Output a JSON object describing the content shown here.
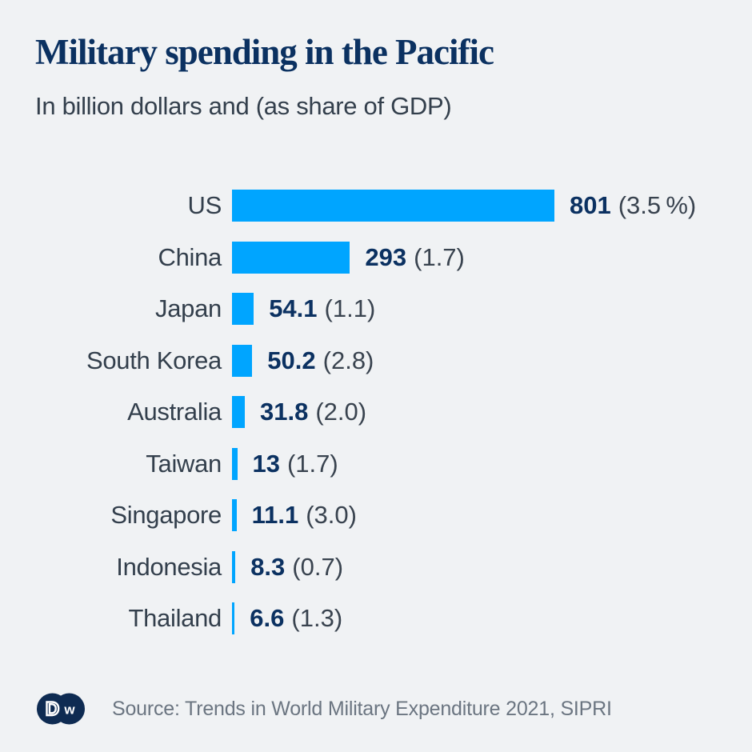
{
  "page": {
    "background": "#f0f2f4"
  },
  "header": {
    "title": "Military spending in the Pacific",
    "subtitle": "In billion dollars and (as share of GDP)"
  },
  "chart_data": {
    "type": "bar",
    "orientation": "horizontal",
    "title": "Military spending in the Pacific",
    "unit": "billion US dollars",
    "categories": [
      "US",
      "China",
      "Japan",
      "South Korea",
      "Australia",
      "Taiwan",
      "Singapore",
      "Indonesia",
      "Thailand"
    ],
    "values": [
      801,
      293,
      54.1,
      50.2,
      31.8,
      13,
      11.1,
      8.3,
      6.6
    ],
    "value_labels": [
      "801",
      "293",
      "54.1",
      "50.2",
      "31.8",
      "13",
      "11.1",
      "8.3",
      "6.6"
    ],
    "gdp_share_labels": [
      "(3.5 %)",
      "(1.7)",
      "(1.1)",
      "(2.8)",
      "(2.0)",
      "(1.7)",
      "(3.0)",
      "(0.7)",
      "(1.3)"
    ],
    "xlim": [
      0,
      801
    ],
    "bar_color": "#00a5ff",
    "grid": false,
    "legend": "none"
  },
  "footer": {
    "logo": "DW",
    "logo_d": "D",
    "logo_w": "w",
    "source": "Source: Trends in World Military Expenditure 2021, SIPRI"
  },
  "colors": {
    "background": "#f0f2f4",
    "title_navy": "#0b3161",
    "bar_blue": "#00a5ff",
    "label_gray": "#333f4c",
    "source_gray": "#6b7581",
    "logo_navy": "#0e2b52"
  }
}
